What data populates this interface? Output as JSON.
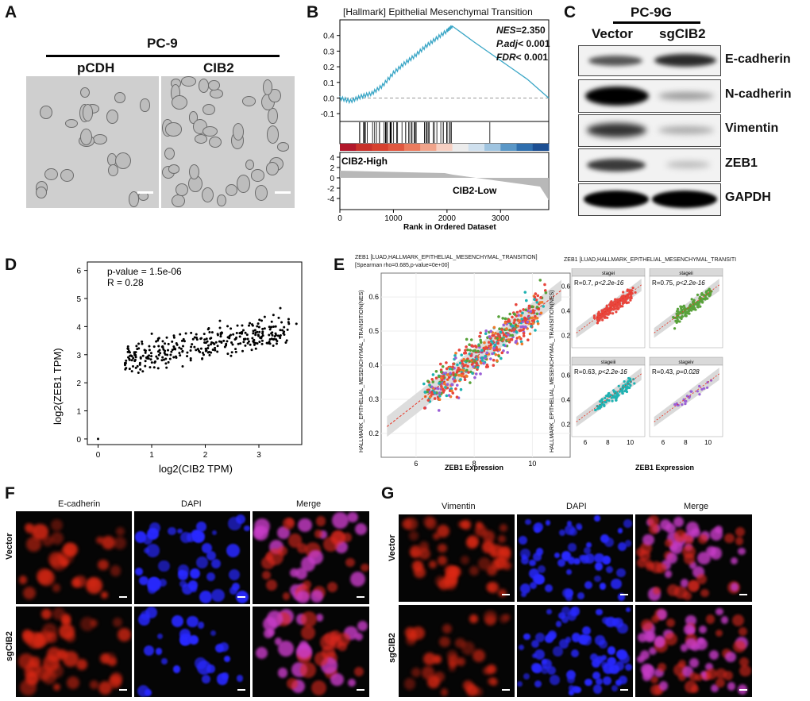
{
  "panel_labels": {
    "a": "A",
    "b": "B",
    "c": "C",
    "d": "D",
    "e": "E",
    "f": "F",
    "g": "G"
  },
  "panelA": {
    "cell_line": "PC-9",
    "conditions": [
      "pCDH",
      "CIB2"
    ]
  },
  "panelB": {
    "title": "[Hallmark] Epithelial Mesenchymal Transition",
    "nes_label": "NES",
    "nes_value": "=2.350",
    "padj_label": "P.adj",
    "padj_value": "< 0.001",
    "fdr_label": "FDR",
    "fdr_value": "< 0.001",
    "high_label": "CIB2-High",
    "low_label": "CIB2-Low",
    "xlabel": "Rank in Ordered  Dataset",
    "es_ticks": [
      "0.4",
      "0.3",
      "0.2",
      "0.1",
      "0.0",
      "-0.1"
    ],
    "metric_ticks": [
      "4",
      "2",
      "0",
      "-2",
      "-4"
    ],
    "x_ticks": [
      "0",
      "1000",
      "2000",
      "3000"
    ]
  },
  "panelC": {
    "cell_line": "PC-9G",
    "lanes": [
      "Vector",
      "sgCIB2"
    ],
    "proteins": [
      "E-cadherin",
      "N-cadherin",
      "Vimentin",
      "ZEB1",
      "GAPDH"
    ]
  },
  "panelD": {
    "pvalue": "p-value = 1.5e-06",
    "r": "R = 0.28",
    "xlabel": "log2(CIB2 TPM)",
    "ylabel": "log2(ZEB1 TPM)",
    "x_ticks": [
      "0",
      "1",
      "2",
      "3"
    ],
    "y_ticks": [
      "0",
      "1",
      "2",
      "3",
      "4",
      "5",
      "6"
    ]
  },
  "panelE": {
    "title1": "ZEB1 [LUAD,HALLMARK_EPITHELIAL_MESENCHYMAL_TRANSITION]",
    "title2": "[Spearman rho=0.685,p-value=0e+00]",
    "title_right": "ZEB1 [LUAD,HALLMARK_EPITHELIAL_MESENCHYMAL_TRANSITI",
    "ylabel": "HALLMARK_EPITHELIAL_MESENCHYMAL_TRANSITION(NES)",
    "xlabel": "ZEB1  Expression",
    "main_x_ticks": [
      "6",
      "8",
      "10"
    ],
    "main_y_ticks": [
      "0.6",
      "0.5",
      "0.4",
      "0.3",
      "0.2"
    ],
    "small_x_ticks": [
      "6",
      "8",
      "10"
    ],
    "small_y_ticks": [
      "0.6",
      "0.4",
      "0.2"
    ],
    "facets": [
      {
        "strip": "stagei",
        "r": "R=0.7, ",
        "p": "p<2.2e-16"
      },
      {
        "strip": "stageii",
        "r": "R=0.75, ",
        "p": "p<2.2e-16"
      },
      {
        "strip": "stageiii",
        "r": "R=0.63, ",
        "p": "p<2.2e-16"
      },
      {
        "strip": "stageiv",
        "r": "R=0.43, ",
        "p": "p=0.028"
      }
    ]
  },
  "panelF": {
    "columns": [
      "E-cadherin",
      "DAPI",
      "Merge"
    ],
    "rows": [
      "Vector",
      "sgCIB2"
    ]
  },
  "panelG": {
    "columns": [
      "Vimentin",
      "DAPI",
      "Merge"
    ],
    "rows": [
      "Vector",
      "sgCIB2"
    ]
  },
  "colors": {
    "accent": "#3aa6c6",
    "red": "#e83020",
    "blue": "#1a1aff"
  },
  "chart_data": [
    {
      "type": "line",
      "title": "[Hallmark] Epithelial Mesenchymal Transition",
      "xlabel": "Rank in Ordered  Dataset",
      "ylabel": "",
      "x": [
        0,
        200,
        400,
        600,
        800,
        1000,
        1200,
        1400,
        1600,
        1800,
        2000,
        2100,
        2500,
        3000,
        3500,
        3900
      ],
      "y": [
        0.0,
        -0.02,
        0.01,
        0.03,
        0.08,
        0.16,
        0.22,
        0.27,
        0.33,
        0.38,
        0.43,
        0.46,
        0.36,
        0.24,
        0.12,
        0.0
      ],
      "xlim": [
        0,
        3900
      ],
      "ylim": [
        -0.15,
        0.5
      ]
    },
    {
      "type": "scatter",
      "title": "",
      "xlabel": "log2(CIB2 TPM)",
      "ylabel": "log2(ZEB1 TPM)",
      "xlim": [
        -0.2,
        3.8
      ],
      "ylim": [
        -0.2,
        6.3
      ],
      "annotations": [
        "p-value = 1.5e-06",
        "R = 0.28"
      ]
    },
    {
      "type": "scatter",
      "title": "ZEB1 [LUAD,HALLMARK_EPITHELIAL_MESENCHYMAL_TRANSITION]",
      "xlabel": "ZEB1  Expression",
      "ylabel": "HALLMARK_EPITHELIAL_MESENCHYMAL_TRANSITION(NES)",
      "xlim": [
        4.8,
        11.3
      ],
      "ylim": [
        0.13,
        0.67
      ],
      "fit": {
        "x": [
          5,
          11
        ],
        "y": [
          0.22,
          0.62
        ]
      }
    }
  ]
}
